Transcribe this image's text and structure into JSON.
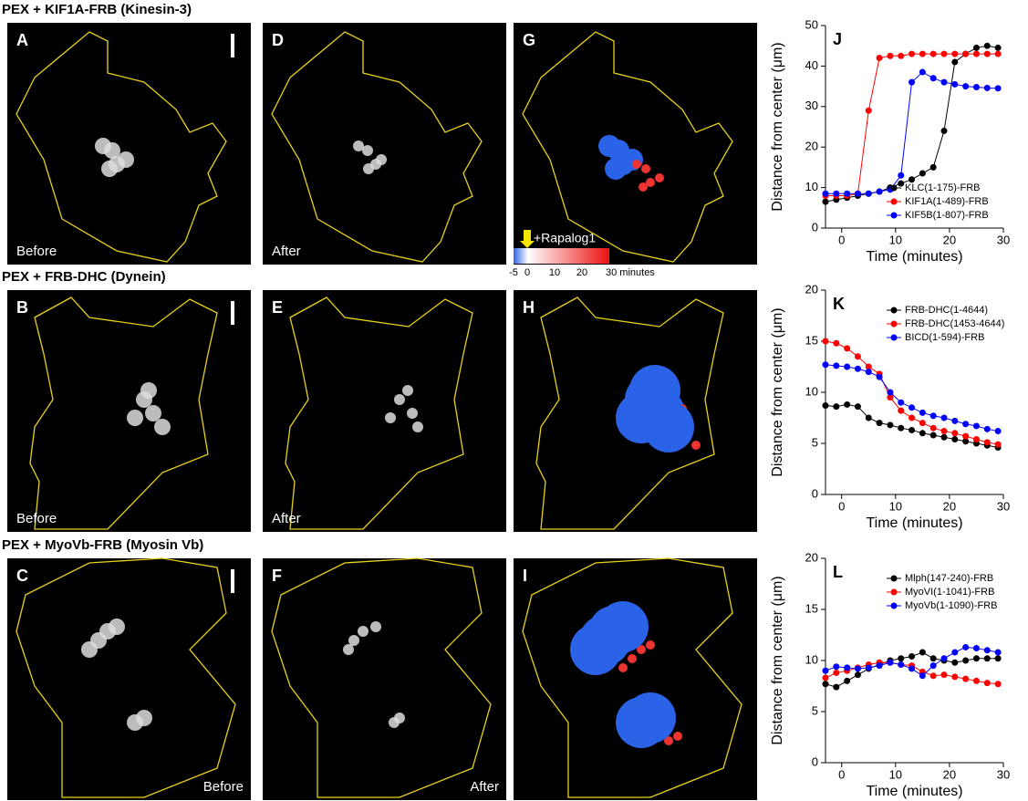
{
  "rows": [
    {
      "title": "PEX + KIF1A-FRB (Kinesin-3)",
      "panels": [
        {
          "letter": "A",
          "caption": "Before"
        },
        {
          "letter": "D",
          "caption": "After"
        },
        {
          "letter": "G"
        }
      ]
    },
    {
      "title": "PEX + FRB-DHC (Dynein)",
      "panels": [
        {
          "letter": "B",
          "caption": "Before"
        },
        {
          "letter": "E",
          "caption": "After"
        },
        {
          "letter": "H"
        }
      ]
    },
    {
      "title": "PEX + MyoVb-FRB (Myosin Vb)",
      "panels": [
        {
          "letter": "C",
          "caption": "Before"
        },
        {
          "letter": "F",
          "caption": "After"
        },
        {
          "letter": "I"
        }
      ]
    }
  ],
  "colorbar": {
    "label": "+Rapalog1",
    "ticks": [
      "-5",
      "0",
      "10",
      "20",
      "30 minutes"
    ]
  },
  "chart_data": [
    {
      "type": "line",
      "panel": "J",
      "xlabel": "Time (minutes)",
      "ylabel": "Distance from center (μm)",
      "x": [
        -3,
        -1,
        1,
        3,
        5,
        7,
        9,
        11,
        13,
        15,
        17,
        19,
        21,
        23,
        25,
        27,
        29
      ],
      "xlim": [
        -3,
        30
      ],
      "xticks": [
        0,
        10,
        20,
        30
      ],
      "ylim": [
        0,
        50
      ],
      "yticks": [
        0,
        10,
        20,
        30,
        40,
        50
      ],
      "legend": "lower right",
      "series": [
        {
          "name": "KLC(1-175)-FRB",
          "color": "#000000",
          "values": [
            6.5,
            7,
            7.5,
            8,
            8.5,
            9,
            10,
            11,
            12,
            13.5,
            15,
            24,
            41,
            43,
            44.5,
            45,
            44.5
          ]
        },
        {
          "name": "KIF1A(1-489)-FRB",
          "color": "#ff0000",
          "values": [
            8,
            8,
            8,
            8.5,
            29,
            42,
            42.5,
            42.5,
            43,
            43,
            43,
            43,
            43,
            43,
            43,
            43,
            43
          ]
        },
        {
          "name": "KIF5B(1-807)-FRB",
          "color": "#0000ff",
          "values": [
            8.5,
            8.5,
            8.5,
            8.5,
            8.5,
            9,
            9.5,
            13,
            36,
            38.5,
            37,
            36,
            35.5,
            35,
            34.8,
            34.6,
            34.5
          ]
        }
      ]
    },
    {
      "type": "line",
      "panel": "K",
      "xlabel": "Time (minutes)",
      "ylabel": "Distance from center (μm)",
      "x": [
        -3,
        -1,
        1,
        3,
        5,
        7,
        9,
        11,
        13,
        15,
        17,
        19,
        21,
        23,
        25,
        27,
        29
      ],
      "xlim": [
        -3,
        30
      ],
      "xticks": [
        0,
        10,
        20,
        30
      ],
      "ylim": [
        0,
        20
      ],
      "yticks": [
        0,
        5,
        10,
        15,
        20
      ],
      "legend": "upper right",
      "series": [
        {
          "name": "FRB-DHC(1-4644)",
          "color": "#000000",
          "values": [
            8.7,
            8.6,
            8.8,
            8.6,
            7.5,
            7,
            6.8,
            6.5,
            6.3,
            6,
            5.8,
            5.6,
            5.4,
            5.2,
            5,
            4.8,
            4.6
          ]
        },
        {
          "name": "FRB-DHC(1453-4644)",
          "color": "#ff0000",
          "values": [
            15,
            14.8,
            14.3,
            13.5,
            12.5,
            11.8,
            9.5,
            8.2,
            7.5,
            7,
            6.5,
            6.2,
            6,
            5.7,
            5.4,
            5.1,
            4.9
          ]
        },
        {
          "name": "BICD(1-594)-FRB",
          "color": "#0000ff",
          "values": [
            12.7,
            12.6,
            12.5,
            12.3,
            12,
            11.5,
            10,
            9,
            8.5,
            8,
            7.7,
            7.5,
            7.2,
            6.9,
            6.7,
            6.4,
            6.2
          ]
        }
      ]
    },
    {
      "type": "line",
      "panel": "L",
      "xlabel": "Time (minutes)",
      "ylabel": "Distance from center (μm)",
      "x": [
        -3,
        -1,
        1,
        3,
        5,
        7,
        9,
        11,
        13,
        15,
        17,
        19,
        21,
        23,
        25,
        27,
        29
      ],
      "xlim": [
        -3,
        30
      ],
      "xticks": [
        0,
        10,
        20,
        30
      ],
      "ylim": [
        0,
        20
      ],
      "yticks": [
        0,
        5,
        10,
        15,
        20
      ],
      "legend": "upper right",
      "series": [
        {
          "name": "Mlph(147-240)-FRB",
          "color": "#000000",
          "values": [
            7.7,
            7.4,
            8,
            8.6,
            9.2,
            9.6,
            10,
            10.2,
            10.4,
            10.8,
            10.2,
            10,
            9.8,
            10,
            10.2,
            10.2,
            10.2
          ]
        },
        {
          "name": "MyoVI(1-1041)-FRB",
          "color": "#ff0000",
          "values": [
            8.3,
            8.8,
            9,
            9.3,
            9.6,
            9.8,
            9.8,
            9.6,
            9.5,
            8.9,
            8.5,
            8.6,
            8.4,
            8.2,
            8,
            7.8,
            7.7
          ]
        },
        {
          "name": "MyoVb(1-1090)-FRB",
          "color": "#0000ff",
          "values": [
            9,
            9.4,
            9.3,
            9.2,
            9.3,
            9.5,
            9.8,
            9.6,
            9.2,
            8.5,
            9.5,
            10.2,
            10.8,
            11.3,
            11.2,
            11,
            10.8
          ]
        }
      ]
    }
  ]
}
